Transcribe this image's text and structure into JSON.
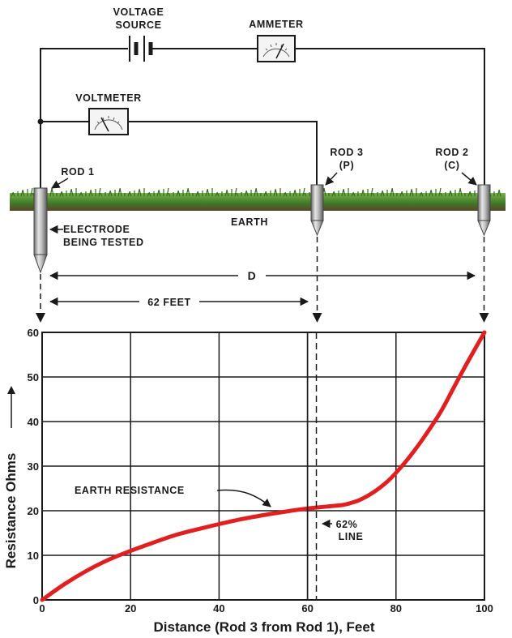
{
  "circuit": {
    "voltage_source_line1": "VOLTAGE",
    "voltage_source_line2": "SOURCE",
    "ammeter": "AMMETER",
    "voltmeter": "VOLTMETER",
    "rod1": "ROD 1",
    "rod3_line1": "ROD 3",
    "rod3_line2": "(P)",
    "rod2_line1": "ROD 2",
    "rod2_line2": "(C)",
    "earth": "EARTH",
    "electrode_line1": "ELECTRODE",
    "electrode_line2": "BEING TESTED",
    "distance_d": "D",
    "distance_62": "62 FEET"
  },
  "colors": {
    "curve": "#e02020",
    "grass": "#3f7d2a",
    "soil": "#6b4a2b",
    "rod": "#a9a9a9",
    "grid": "#1a1a1a"
  },
  "chart_data": {
    "type": "line",
    "xlabel": "Distance (Rod 3 from Rod 1), Feet",
    "ylabel": "Resistance Ohms",
    "xlim": [
      0,
      100
    ],
    "ylim": [
      0,
      60
    ],
    "xticks": [
      0,
      20,
      40,
      60,
      80,
      100
    ],
    "yticks": [
      0,
      10,
      20,
      30,
      40,
      50,
      60
    ],
    "grid": true,
    "series": [
      {
        "name": "EARTH RESISTANCE",
        "x": [
          0,
          5,
          10,
          15,
          20,
          25,
          30,
          35,
          40,
          45,
          50,
          55,
          60,
          62,
          65,
          68,
          70,
          72,
          75,
          78,
          80,
          83,
          86,
          90,
          93,
          96,
          100
        ],
        "y": [
          0,
          3.5,
          6.5,
          9,
          11,
          12.8,
          14.5,
          15.8,
          17,
          18.1,
          19,
          19.8,
          20.5,
          20.7,
          21,
          21.3,
          21.8,
          22.5,
          24.2,
          26.5,
          28.5,
          32,
          36,
          42,
          47.5,
          53,
          60
        ]
      }
    ],
    "annotations": {
      "curve_label": "EARTH RESISTANCE",
      "line_label_1": "62%",
      "line_label_2": "LINE",
      "line_x": 62,
      "solid_line_x": 60
    }
  }
}
